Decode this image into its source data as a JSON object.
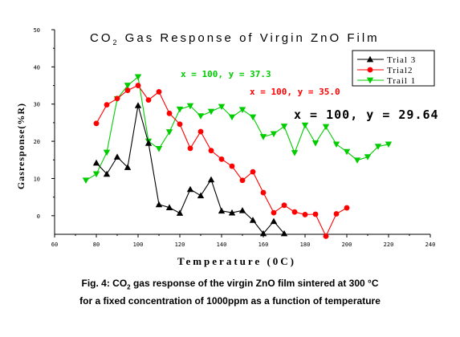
{
  "chart_data": {
    "type": "line",
    "title_prefix": "CO",
    "title_sub": "2",
    "title_rest": " Gas  Response  of  Virgin ZnO  Film",
    "title_color": "#0000ff",
    "xlabel": "Temperature (0C)",
    "ylabel": "Gasresponse(%R)",
    "xlim": [
      60,
      240
    ],
    "ylim": [
      -5,
      50
    ],
    "x_ticks": [
      60,
      80,
      100,
      120,
      140,
      160,
      180,
      200,
      220,
      240
    ],
    "y_ticks": [
      0,
      10,
      20,
      30,
      40,
      50
    ],
    "legend_position": "top-right",
    "series": [
      {
        "name": "Trial 3",
        "color": "#000000",
        "marker": "triangle-up",
        "x": [
          80,
          85,
          90,
          95,
          100,
          105,
          110,
          115,
          120,
          125,
          130,
          135,
          140,
          145,
          150,
          155,
          160,
          165,
          170
        ],
        "y": [
          14.2,
          11.2,
          15.8,
          13.0,
          29.64,
          19.5,
          3.0,
          2.2,
          0.7,
          7.1,
          5.4,
          9.7,
          1.3,
          0.8,
          1.4,
          -1.2,
          -4.8,
          -1.5,
          -4.8
        ]
      },
      {
        "name": "Trial2",
        "color": "#ff0000",
        "marker": "circle",
        "x": [
          80,
          85,
          90,
          95,
          100,
          105,
          110,
          115,
          120,
          125,
          130,
          135,
          140,
          145,
          150,
          155,
          160,
          165,
          170,
          175,
          180,
          185,
          190,
          195,
          200
        ],
        "y": [
          24.8,
          29.8,
          31.5,
          33.7,
          35.0,
          31.1,
          33.3,
          27.5,
          24.6,
          18.1,
          22.6,
          17.5,
          15.2,
          13.3,
          9.5,
          11.8,
          6.2,
          0.8,
          2.8,
          1.0,
          0.3,
          0.4,
          -5.5,
          0.5,
          2.1
        ]
      },
      {
        "name": "Trail 1",
        "color": "#00cc00",
        "marker": "triangle-down",
        "x": [
          75,
          80,
          85,
          90,
          95,
          100,
          105,
          110,
          115,
          120,
          125,
          130,
          135,
          140,
          145,
          150,
          155,
          160,
          165,
          170,
          175,
          180,
          185,
          190,
          195,
          200,
          205,
          210,
          215,
          220
        ],
        "y": [
          9.5,
          11.2,
          17.0,
          31.4,
          35.0,
          37.3,
          20.0,
          18.0,
          22.5,
          28.6,
          29.5,
          26.8,
          28.0,
          29.3,
          26.5,
          28.5,
          26.5,
          21.2,
          22.0,
          24.0,
          16.9,
          24.3,
          19.5,
          23.9,
          19.2,
          17.2,
          14.9,
          15.8,
          18.6,
          19.2
        ]
      }
    ],
    "annotations": [
      {
        "text": "x = 100, y = 37.3",
        "color": "#00cc00"
      },
      {
        "text": "x = 100, y = 35.0",
        "color": "#ff0000"
      },
      {
        "text": "x = 100, y = 29.64",
        "color": "#000000"
      }
    ]
  },
  "caption": {
    "line1_prefix": "Fig. 4: CO",
    "line1_sub": "2",
    "line1_rest": " gas response of the virgin ZnO film sintered at 300 °C",
    "line2": "for a fixed concentration of 1000ppm as a function of temperature"
  }
}
